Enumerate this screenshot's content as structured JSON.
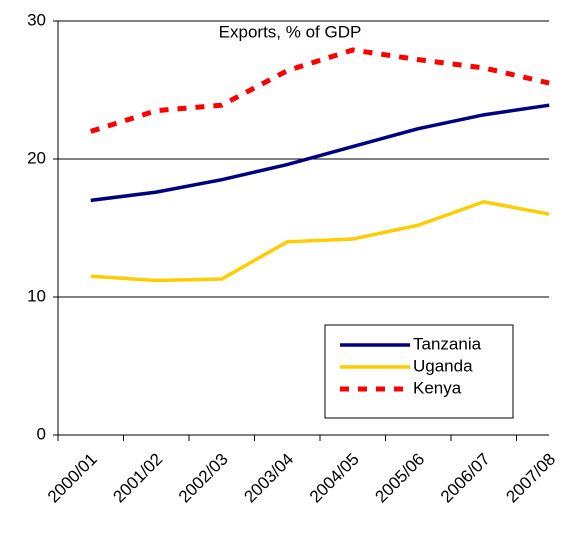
{
  "chart_data": {
    "type": "line",
    "title": "Exports, % of GDP",
    "categories": [
      "2000/01",
      "2001/02",
      "2002/03",
      "2003/04",
      "2004/05",
      "2005/06",
      "2006/07",
      "2007/08"
    ],
    "series": [
      {
        "name": "Tanzania",
        "color": "#000080",
        "values": [
          17.0,
          17.6,
          18.5,
          19.6,
          20.9,
          22.2,
          23.2,
          23.9
        ]
      },
      {
        "name": "Uganda",
        "color": "#FFCC00",
        "values": [
          11.5,
          11.2,
          11.3,
          14.0,
          14.2,
          15.2,
          16.9,
          16.0
        ]
      },
      {
        "name": "Kenya",
        "color": "#FF0000",
        "dashed": true,
        "values": [
          22.0,
          23.5,
          23.9,
          26.4,
          27.9,
          27.2,
          26.6,
          25.5
        ]
      }
    ],
    "ylim": [
      0,
      30
    ],
    "yticks": [
      0,
      10,
      20,
      30
    ],
    "grid": true,
    "legend": "lower right"
  }
}
